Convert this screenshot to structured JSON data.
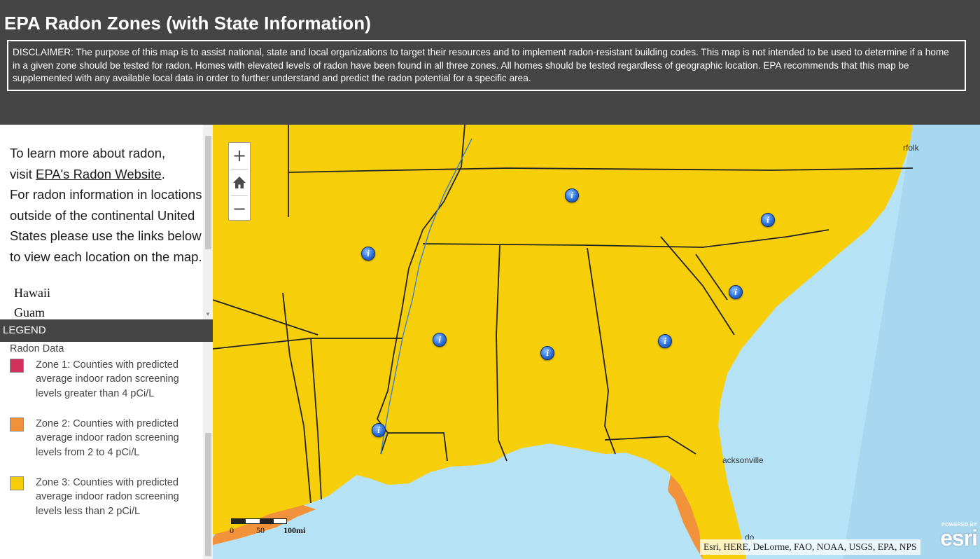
{
  "header": {
    "title": "EPA Radon Zones (with State Information)",
    "disclaimer": "DISCLAIMER: The purpose of this map is to assist national, state and local organizations to target their resources and to implement radon-resistant building codes. This map is not intended to be used to determine if a home in a given zone should be tested for radon. Homes with elevated levels of radon have been found in all three zones. All homes should be tested regardless of geographic location. EPA recommends that this map be supplemented with any available local data in order to further understand and predict the radon potential for a specific area."
  },
  "info": {
    "line1": "To learn more about radon,",
    "line2_prefix": "visit ",
    "link_text": "EPA's Radon Website",
    "line2_suffix": ".",
    "line3": "For radon information in locations",
    "line4": "outside of the continental United",
    "line5": "States please use the links below",
    "line6": "to view each location on the map.",
    "locations": [
      "Hawaii",
      "Guam"
    ]
  },
  "legend": {
    "title": "LEGEND",
    "heading": "Radon Data",
    "items": [
      {
        "color": "#d22f5d",
        "label": "Zone 1: Counties with predicted average indoor radon screening levels greater than 4 pCi/L"
      },
      {
        "color": "#f1923b",
        "label": "Zone 2: Counties with predicted average indoor radon screening levels from 2 to 4 pCi/L"
      },
      {
        "color": "#f6cf0a",
        "label": "Zone 3: Counties with predicted average indoor radon screening levels less than 2 pCi/L"
      }
    ]
  },
  "map": {
    "zoom": {
      "in": "+",
      "home": "home-icon",
      "out": "−"
    },
    "labels": {
      "city_right": "rfolk",
      "city_bottom": "acksonville",
      "city_bottom2": "do"
    },
    "scale": {
      "zero": "0",
      "mid": "50",
      "end": "100mi"
    },
    "attribution": "Esri, HERE, DeLorme, FAO, NOAA, USGS, EPA, NPS",
    "logo": {
      "powered": "POWERED BY",
      "word": "esri"
    },
    "marker_glyph": "i",
    "colors": {
      "zone1": "#d22f5d",
      "zone2": "#f1923b",
      "zone3": "#f6cf0a",
      "water": "#b5e2f5",
      "border": "#7a6a1e"
    }
  }
}
